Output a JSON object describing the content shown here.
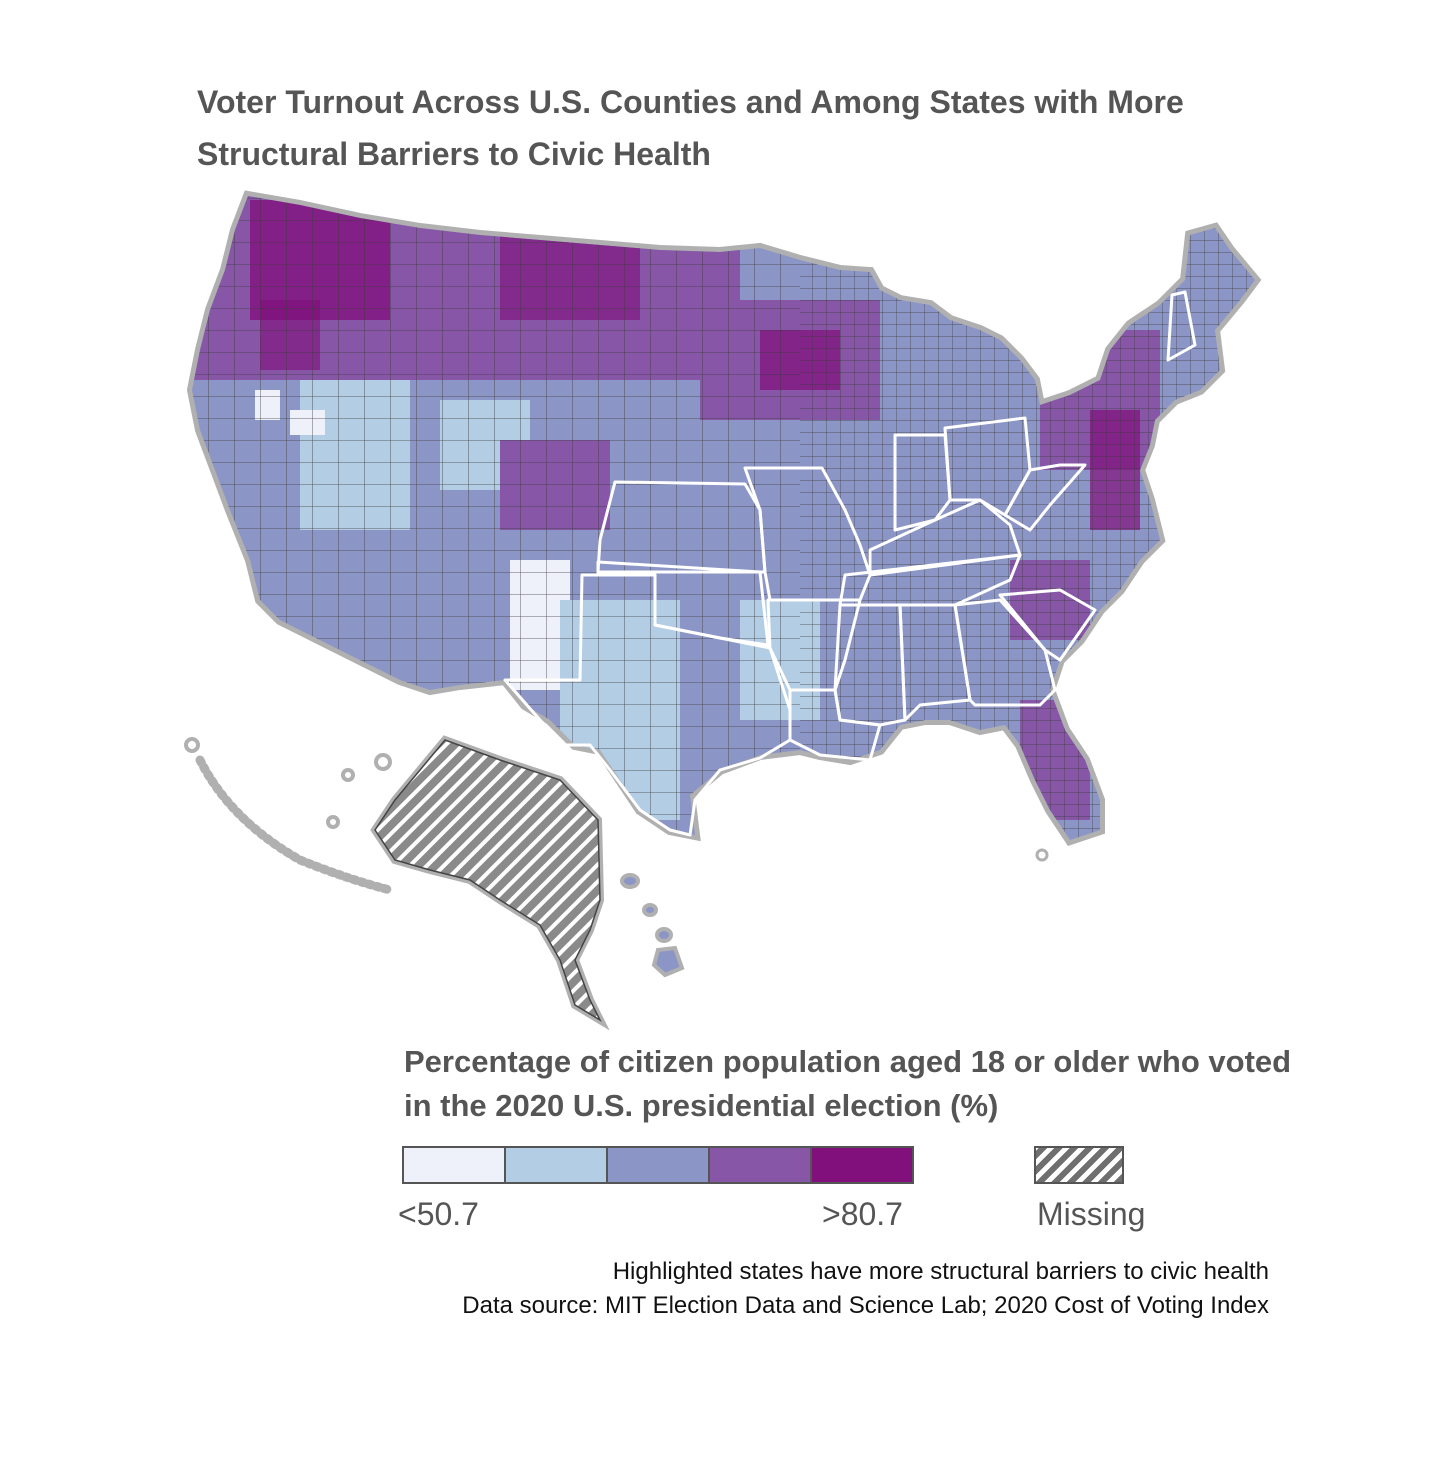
{
  "title": "Voter Turnout Across U.S. Counties and Among States with More Structural Barriers to Civic Health",
  "legend": {
    "title": "Percentage of citizen population aged 18 or older who voted in the 2020 U.S. presidential election (%)",
    "low_label": "<50.7",
    "high_label": ">80.7",
    "missing_label": "Missing",
    "colors": [
      "#eef1f9",
      "#b3cde4",
      "#8c96c6",
      "#8856a7",
      "#810f7c"
    ],
    "missing_color": "#6f6f6f"
  },
  "notes": {
    "highlight": "Highlighted states have more structural barriers to civic health",
    "source": "Data source: MIT Election Data and Science Lab; 2020 Cost of Voting Index"
  },
  "map": {
    "highlight_color": "#ffffff",
    "outline_color": "#b0b0b0",
    "county_border_color": "#3a3a3a"
  }
}
